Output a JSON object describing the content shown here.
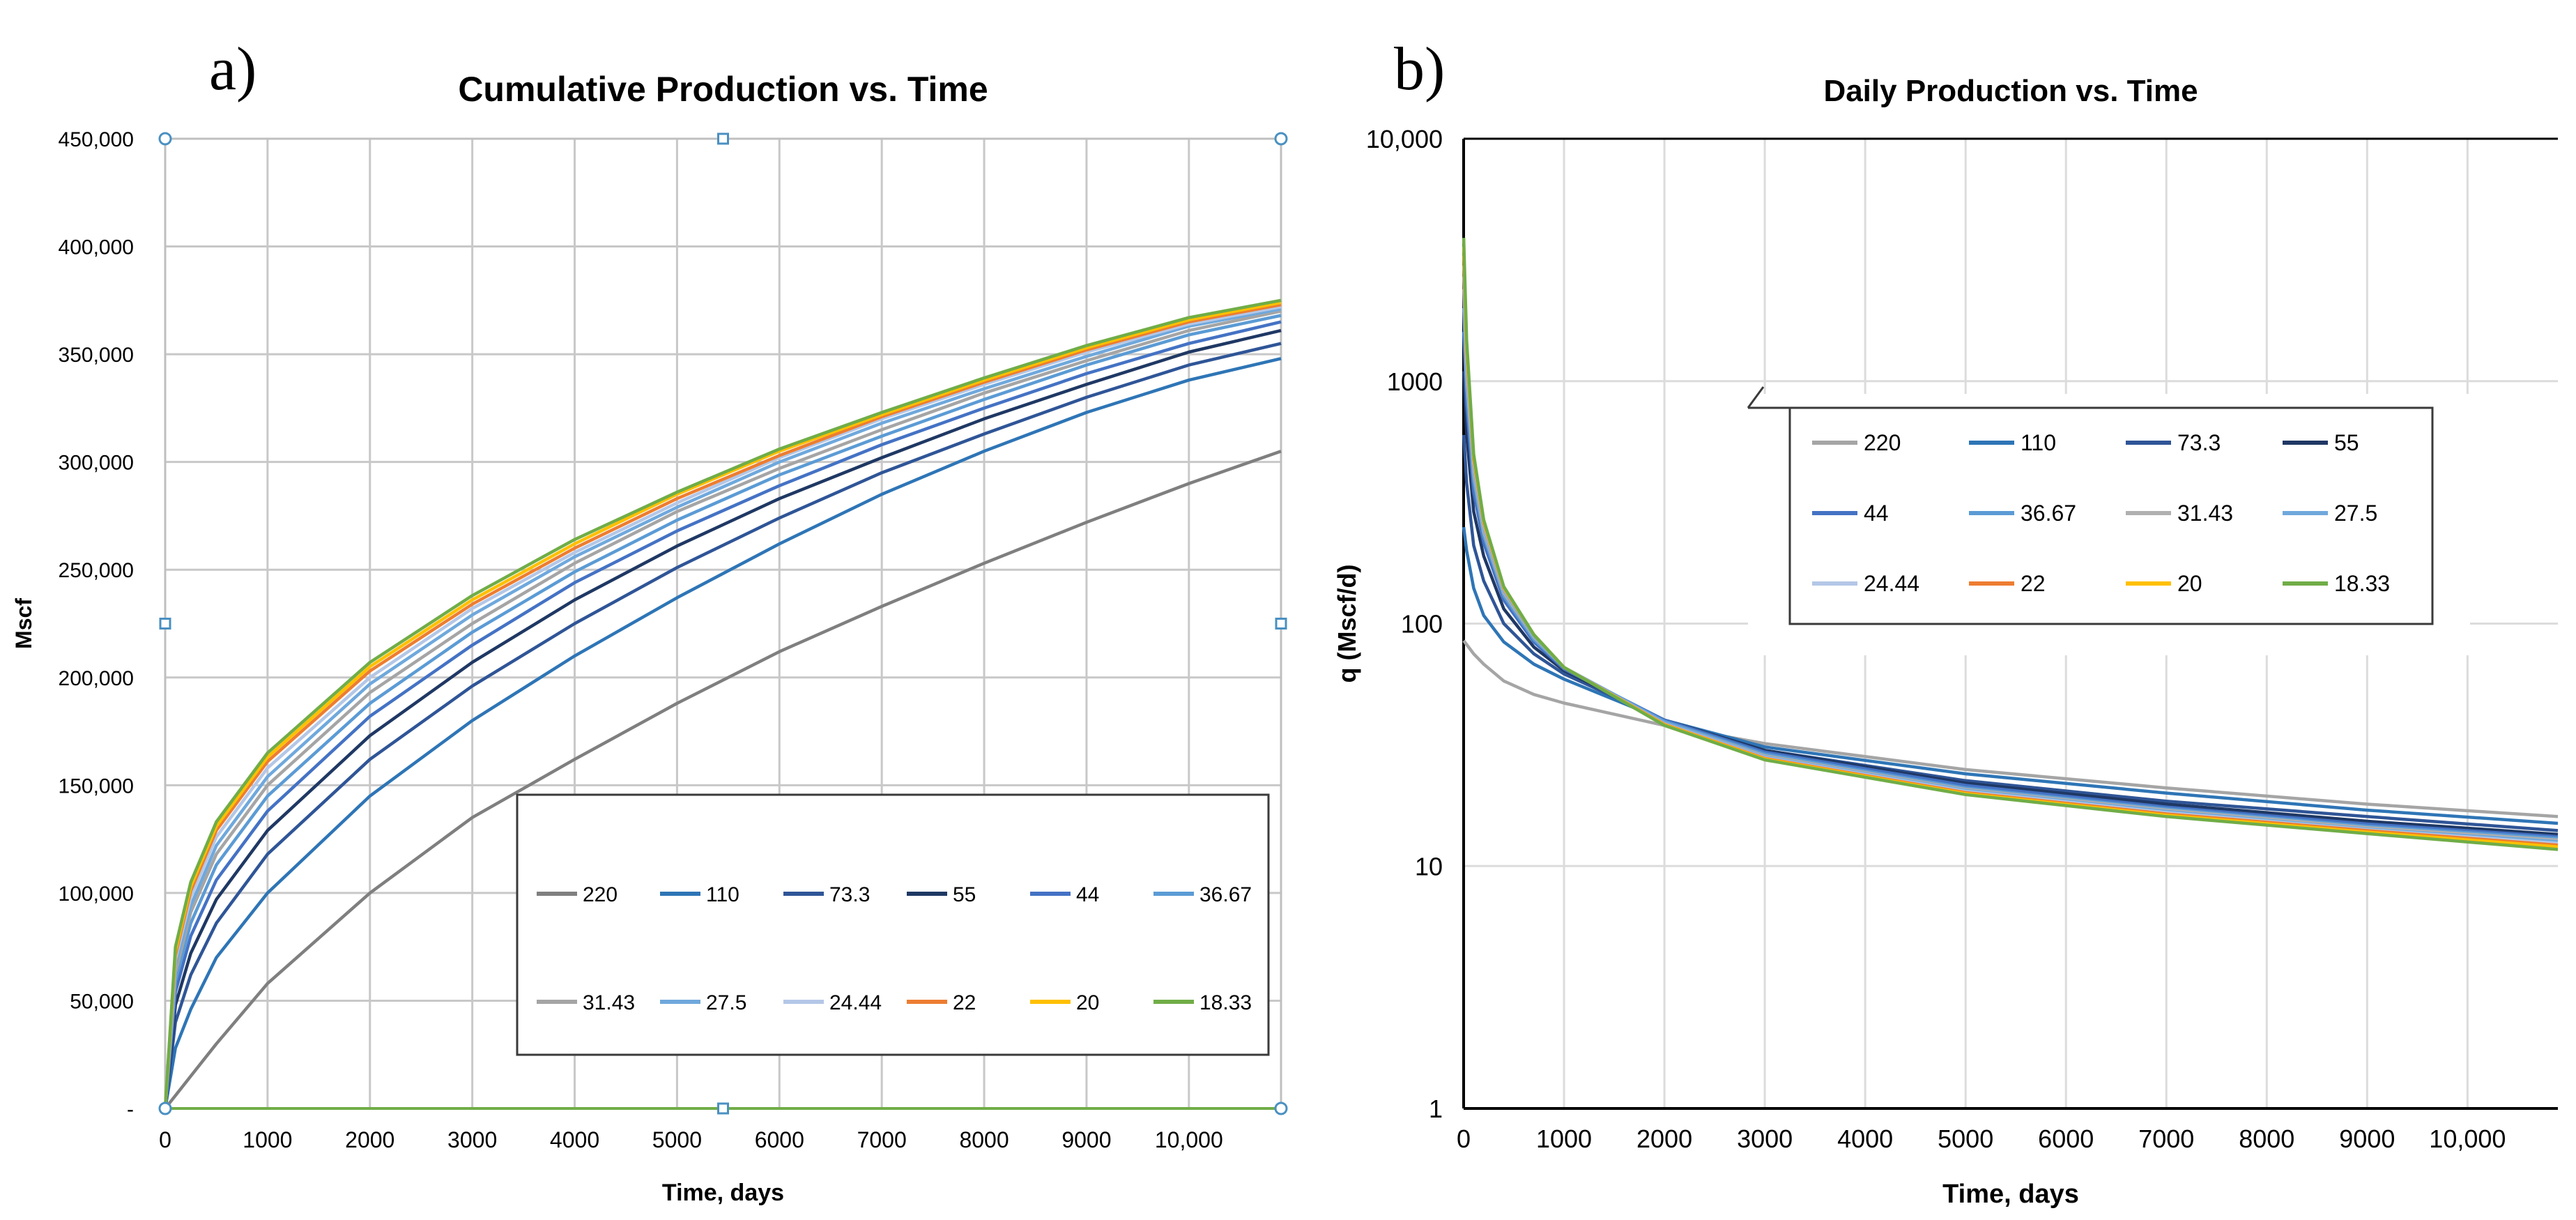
{
  "panels": {
    "a": {
      "label": "a)"
    },
    "b": {
      "label": "b)"
    }
  },
  "chart_data": [
    {
      "id": "cumulative",
      "type": "line",
      "title": "Cumulative Production vs. Time",
      "xlabel": "Time, days",
      "ylabel": "Mscf",
      "xlim": [
        0,
        10900
      ],
      "ylim": [
        0,
        450000
      ],
      "x_ticks": [
        0,
        1000,
        2000,
        3000,
        4000,
        5000,
        6000,
        7000,
        8000,
        9000,
        10000
      ],
      "x_tick_labels": [
        "0",
        "1000",
        "2000",
        "3000",
        "4000",
        "5000",
        "6000",
        "7000",
        "8000",
        "9000",
        "10,000"
      ],
      "y_ticks": [
        0,
        50000,
        100000,
        150000,
        200000,
        250000,
        300000,
        350000,
        400000,
        450000
      ],
      "y_tick_labels": [
        "-",
        "50,000",
        "100,000",
        "150,000",
        "200,000",
        "250,000",
        "300,000",
        "350,000",
        "400,000",
        "450,000"
      ],
      "grid": true,
      "legend_position": "bottom-right",
      "x": [
        0,
        100,
        250,
        500,
        1000,
        2000,
        3000,
        4000,
        5000,
        6000,
        7000,
        8000,
        9000,
        10000,
        10900
      ],
      "series": [
        {
          "name": "220",
          "color": "#7f7f7f",
          "values": [
            0,
            6000,
            15000,
            30000,
            58000,
            100000,
            135000,
            162000,
            188000,
            212000,
            233000,
            253000,
            272000,
            290000,
            305000
          ]
        },
        {
          "name": "110",
          "color": "#2e75b6",
          "values": [
            0,
            28000,
            46000,
            70000,
            100000,
            145000,
            180000,
            210000,
            237000,
            262000,
            285000,
            305000,
            323000,
            338000,
            348000
          ]
        },
        {
          "name": "73.3",
          "color": "#2f5597",
          "values": [
            0,
            40000,
            62000,
            86000,
            118000,
            162000,
            196000,
            225000,
            251000,
            274000,
            295000,
            313000,
            330000,
            345000,
            355000
          ]
        },
        {
          "name": "55",
          "color": "#1f3864",
          "values": [
            0,
            48000,
            72000,
            97000,
            129000,
            173000,
            207000,
            236000,
            261000,
            283000,
            302000,
            320000,
            336000,
            351000,
            361000
          ]
        },
        {
          "name": "44",
          "color": "#4472c4",
          "values": [
            0,
            54000,
            80000,
            106000,
            138000,
            182000,
            215000,
            244000,
            268000,
            289000,
            308000,
            325000,
            341000,
            355000,
            365000
          ]
        },
        {
          "name": "36.67",
          "color": "#5b9bd5",
          "values": [
            0,
            59000,
            86000,
            113000,
            145000,
            188000,
            221000,
            249000,
            273000,
            294000,
            312000,
            329000,
            345000,
            359000,
            368000
          ]
        },
        {
          "name": "31.43",
          "color": "#a5a5a5",
          "values": [
            0,
            63000,
            91000,
            118000,
            150000,
            193000,
            225000,
            253000,
            277000,
            297000,
            315000,
            332000,
            347000,
            361000,
            370000
          ]
        },
        {
          "name": "27.5",
          "color": "#6fa8dc",
          "values": [
            0,
            66000,
            94000,
            122000,
            154000,
            197000,
            229000,
            256000,
            279000,
            300000,
            318000,
            334000,
            349000,
            363000,
            371000
          ]
        },
        {
          "name": "24.44",
          "color": "#b4c7e7",
          "values": [
            0,
            69000,
            98000,
            126000,
            158000,
            200000,
            232000,
            258000,
            281000,
            302000,
            320000,
            336000,
            351000,
            364000,
            372000
          ]
        },
        {
          "name": "22",
          "color": "#ed7d31",
          "values": [
            0,
            71000,
            101000,
            129000,
            161000,
            203000,
            234000,
            260000,
            283000,
            303000,
            321000,
            337000,
            352000,
            365000,
            373000
          ]
        },
        {
          "name": "20",
          "color": "#ffc000",
          "values": [
            0,
            73000,
            103000,
            131000,
            163000,
            205000,
            236000,
            262000,
            285000,
            305000,
            322000,
            338000,
            353000,
            366000,
            374000
          ]
        },
        {
          "name": "18.33",
          "color": "#70ad47",
          "values": [
            0,
            75000,
            105000,
            133000,
            165000,
            207000,
            238000,
            264000,
            286000,
            306000,
            323000,
            339000,
            354000,
            367000,
            375000
          ]
        }
      ]
    },
    {
      "id": "daily",
      "type": "line",
      "yscale": "log",
      "title": "Daily Production vs. Time",
      "xlabel": "Time, days",
      "ylabel": "q (Mscf/d)",
      "xlim": [
        0,
        10900
      ],
      "ylim": [
        1,
        10000
      ],
      "x_ticks": [
        0,
        1000,
        2000,
        3000,
        4000,
        5000,
        6000,
        7000,
        8000,
        9000,
        10000
      ],
      "x_tick_labels": [
        "0",
        "1000",
        "2000",
        "3000",
        "4000",
        "5000",
        "6000",
        "7000",
        "8000",
        "9000",
        "10,000"
      ],
      "y_ticks": [
        1,
        10,
        100,
        1000,
        10000
      ],
      "y_tick_labels": [
        "1",
        "10",
        "100",
        "1000",
        "10,000"
      ],
      "grid": true,
      "legend_position": "upper-right (inset)",
      "x": [
        1,
        30,
        100,
        200,
        400,
        700,
        1000,
        2000,
        3000,
        5000,
        7000,
        9000,
        10900
      ],
      "series": [
        {
          "name": "220",
          "color": "#a5a5a5",
          "values": [
            85,
            82,
            75,
            68,
            58,
            51,
            47,
            38,
            32,
            25,
            21,
            18,
            16
          ]
        },
        {
          "name": "110",
          "color": "#2e75b6",
          "values": [
            250,
            200,
            140,
            108,
            84,
            68,
            59,
            40,
            31,
            24,
            20,
            17,
            15
          ]
        },
        {
          "name": "73.3",
          "color": "#2f5597",
          "values": [
            600,
            380,
            210,
            150,
            100,
            75,
            62,
            40,
            30,
            22.5,
            18.5,
            16,
            14
          ]
        },
        {
          "name": "55",
          "color": "#1f3864",
          "values": [
            1100,
            600,
            290,
            190,
            115,
            80,
            64,
            40,
            30,
            22,
            18,
            15.3,
            13.5
          ]
        },
        {
          "name": "44",
          "color": "#4472c4",
          "values": [
            1600,
            800,
            350,
            215,
            125,
            84,
            65,
            40,
            29.5,
            21.5,
            17.5,
            14.9,
            13.2
          ]
        },
        {
          "name": "36.67",
          "color": "#5b9bd5",
          "values": [
            2000,
            950,
            390,
            230,
            130,
            86,
            66,
            39.5,
            29,
            21,
            17.2,
            14.6,
            13
          ]
        },
        {
          "name": "31.43",
          "color": "#b0b0b0",
          "values": [
            2400,
            1050,
            420,
            240,
            134,
            88,
            66,
            39,
            28.5,
            20.7,
            17,
            14.4,
            12.8
          ]
        },
        {
          "name": "27.5",
          "color": "#6fa8dc",
          "values": [
            2700,
            1150,
            440,
            248,
            137,
            89,
            66,
            39,
            28.2,
            20.5,
            16.8,
            14.2,
            12.6
          ]
        },
        {
          "name": "24.44",
          "color": "#b4c7e7",
          "values": [
            3000,
            1250,
            460,
            255,
            139,
            90,
            66,
            38.6,
            28,
            20.3,
            16.6,
            14.1,
            12.4
          ]
        },
        {
          "name": "22",
          "color": "#ed7d31",
          "values": [
            3300,
            1330,
            475,
            260,
            140,
            90,
            66,
            38.4,
            27.8,
            20.1,
            16.4,
            14,
            12.2
          ]
        },
        {
          "name": "20",
          "color": "#ffc000",
          "values": [
            3600,
            1400,
            490,
            265,
            141,
            90,
            66,
            38.2,
            27.6,
            19.9,
            16.2,
            13.8,
            12
          ]
        },
        {
          "name": "18.33",
          "color": "#70ad47",
          "values": [
            3900,
            1480,
            500,
            268,
            142,
            90,
            66,
            38,
            27.4,
            19.7,
            16,
            13.6,
            11.7
          ]
        }
      ]
    }
  ]
}
